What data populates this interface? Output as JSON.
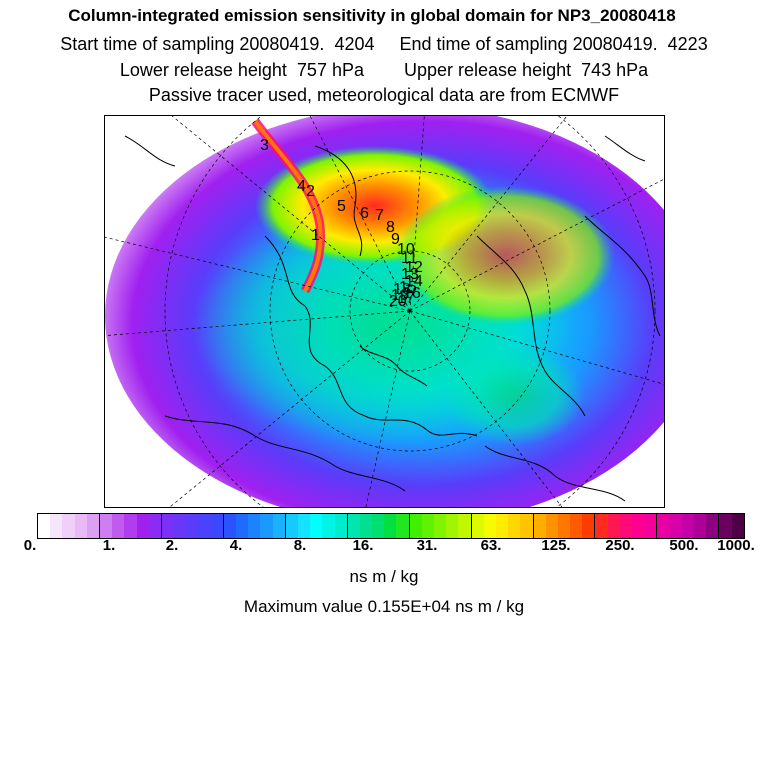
{
  "header": {
    "title": "Column-integrated emission sensitivity in global domain for NP3_20080418",
    "line2": "Start time of sampling 20080419.  4204     End time of sampling 20080419.  4223",
    "line3": "Lower release height  757 hPa        Upper release height  743 hPa",
    "line4": "Passive tracer used, meteorological data are from ECMWF"
  },
  "map": {
    "projection": "polar stereographic (north pole)",
    "track_labels": [
      "3",
      "4",
      "2",
      "5",
      "6",
      "7",
      "8",
      "9",
      "10",
      "11",
      "12",
      "13",
      "14",
      "15",
      "16",
      "17",
      "18",
      "19",
      "20",
      "1"
    ]
  },
  "colorbar": {
    "colors": [
      "#ffffff",
      "#f6e6fb",
      "#efd0f8",
      "#e8baf5",
      "#dba0f2",
      "#cd7ef0",
      "#bf5cee",
      "#b23cef",
      "#a020f0",
      "#8a2cf4",
      "#7a30f6",
      "#6a36f8",
      "#5a3cfa",
      "#4a42fc",
      "#3a48ff",
      "#2a52ff",
      "#1f6aff",
      "#1c82ff",
      "#1a9aff",
      "#18b2ff",
      "#16caff",
      "#14e2ff",
      "#00ffff",
      "#00f4e6",
      "#00eccc",
      "#00e6b0",
      "#00e090",
      "#00e070",
      "#00e040",
      "#20e820",
      "#40f000",
      "#60f200",
      "#80f400",
      "#a0f600",
      "#c0f800",
      "#dcfa00",
      "#f6fc00",
      "#ffec00",
      "#ffd800",
      "#ffc400",
      "#ffae00",
      "#ff9200",
      "#ff7600",
      "#ff5a00",
      "#ff3c00",
      "#ff2a20",
      "#ff1850",
      "#ff0a78",
      "#ff0090",
      "#f6009c",
      "#e800a4",
      "#d800a8",
      "#c400a8",
      "#ac0098",
      "#8e0080",
      "#6c0060",
      "#4e0046"
    ],
    "tick_labels": [
      "0.",
      "1.",
      "2.",
      "4.",
      "8.",
      "16.",
      "31.",
      "63.",
      "125.",
      "250.",
      "500.",
      "1000."
    ],
    "units": "ns m / kg",
    "max_value_text": "Maximum value  0.155E+04 ns m / kg"
  }
}
